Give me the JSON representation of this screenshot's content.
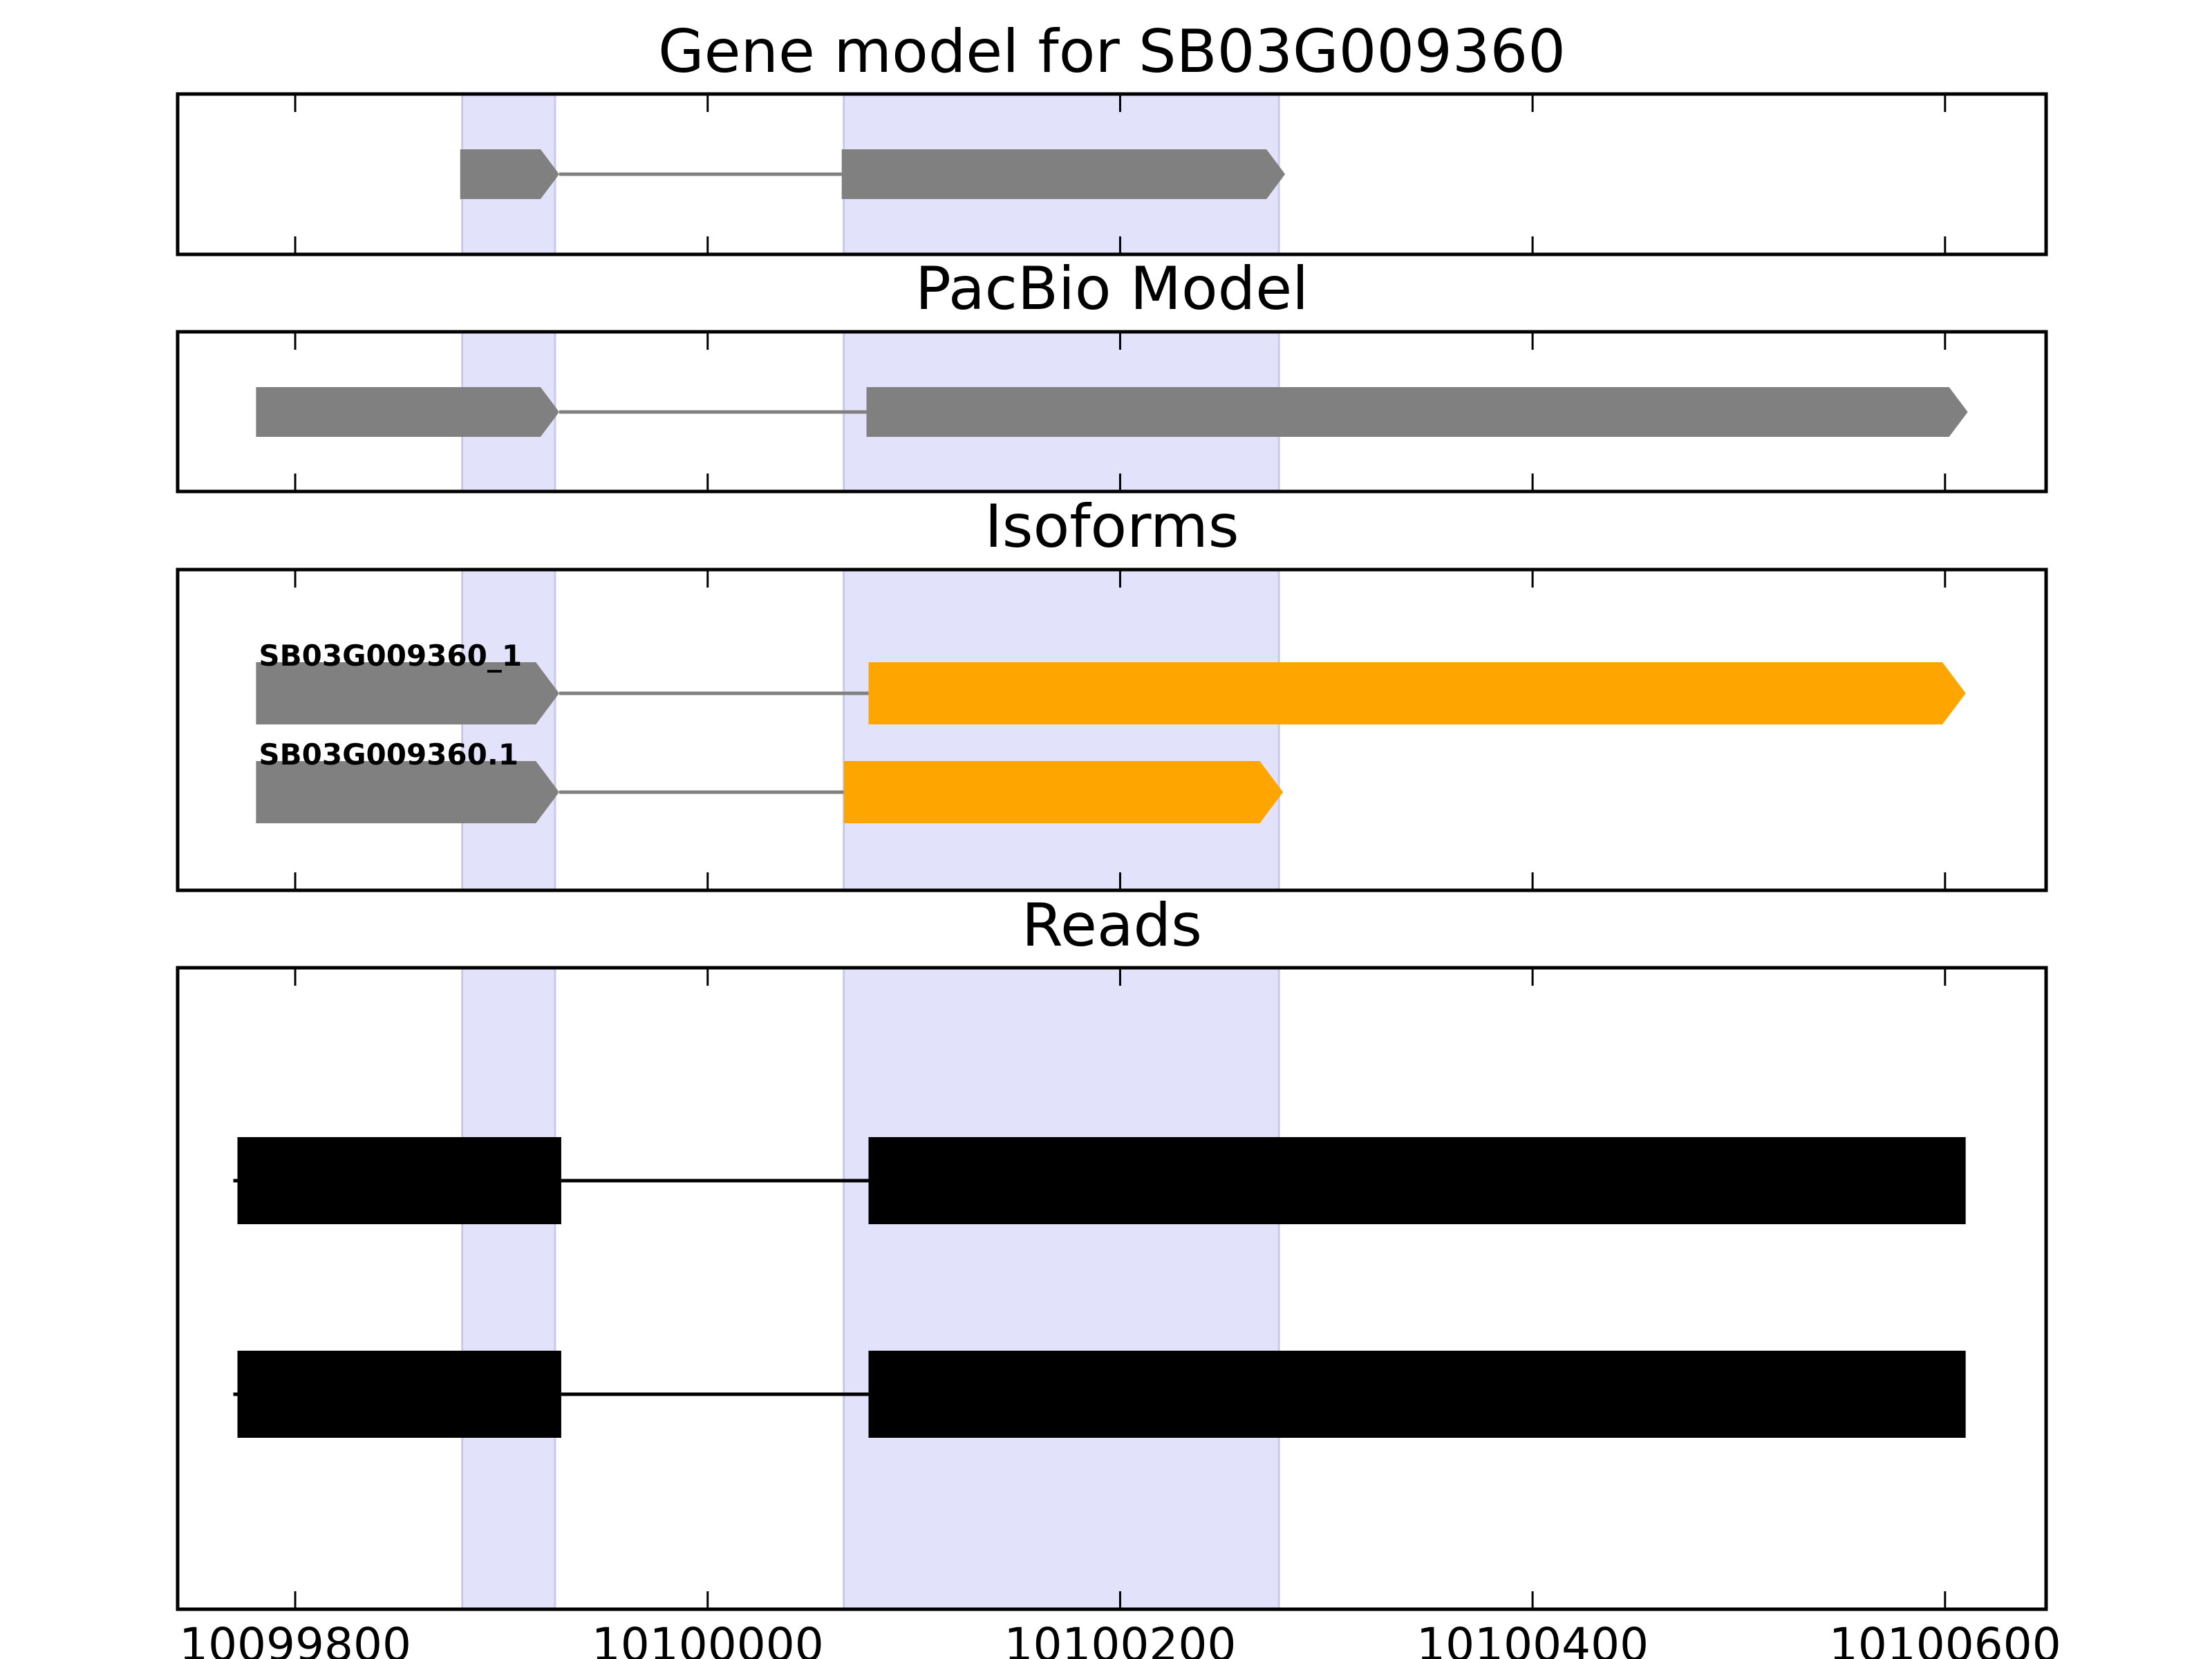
{
  "chart_data": {
    "type": "gene-model",
    "x_ticks": [
      10099800,
      10100000,
      10100200,
      10100400,
      10100600
    ],
    "x_tick_labels": [
      "10099800",
      "10100000",
      "10100200",
      "10100400",
      "10100600"
    ],
    "xlim": [
      10099743,
      10100649
    ],
    "highlight_regions": [
      [
        10099881,
        10099926
      ],
      [
        10100066,
        10100277
      ]
    ],
    "colors": {
      "highlight": "#e2e2fb",
      "model": "#808080",
      "isoform_cds": "#ffa500",
      "read": "#000000",
      "intron_line": "#808080"
    },
    "panels": [
      {
        "key": "gene_model",
        "title": "Gene model for SB03G009360",
        "tracks": [
          {
            "label": "",
            "exons": [
              [
                10099880,
                10099928
              ],
              [
                10100065,
                10100280
              ]
            ],
            "cds": []
          }
        ]
      },
      {
        "key": "pacbio",
        "title": "PacBio Model",
        "tracks": [
          {
            "label": "",
            "exons": [
              [
                10099781,
                10099928
              ],
              [
                10100077,
                10100611
              ]
            ],
            "cds": []
          }
        ]
      },
      {
        "key": "isoforms",
        "title": "Isoforms",
        "tracks": [
          {
            "label": "SB03G009360_1",
            "exons": [
              [
                10099781,
                10099928
              ],
              [
                10100078,
                10100610
              ]
            ],
            "cds": [
              [
                10100078,
                10100610
              ]
            ]
          },
          {
            "label": "SB03G009360.1",
            "exons": [
              [
                10099781,
                10099928
              ],
              [
                10100066,
                10100279
              ]
            ],
            "cds": [
              [
                10100066,
                10100279
              ]
            ]
          }
        ]
      },
      {
        "key": "reads",
        "title": "Reads",
        "tracks": [
          {
            "label": "",
            "exons": [
              [
                10099772,
                10099929
              ],
              [
                10100078,
                10100610
              ]
            ]
          },
          {
            "label": "",
            "exons": [
              [
                10099772,
                10099929
              ],
              [
                10100078,
                10100610
              ]
            ]
          }
        ]
      }
    ]
  }
}
